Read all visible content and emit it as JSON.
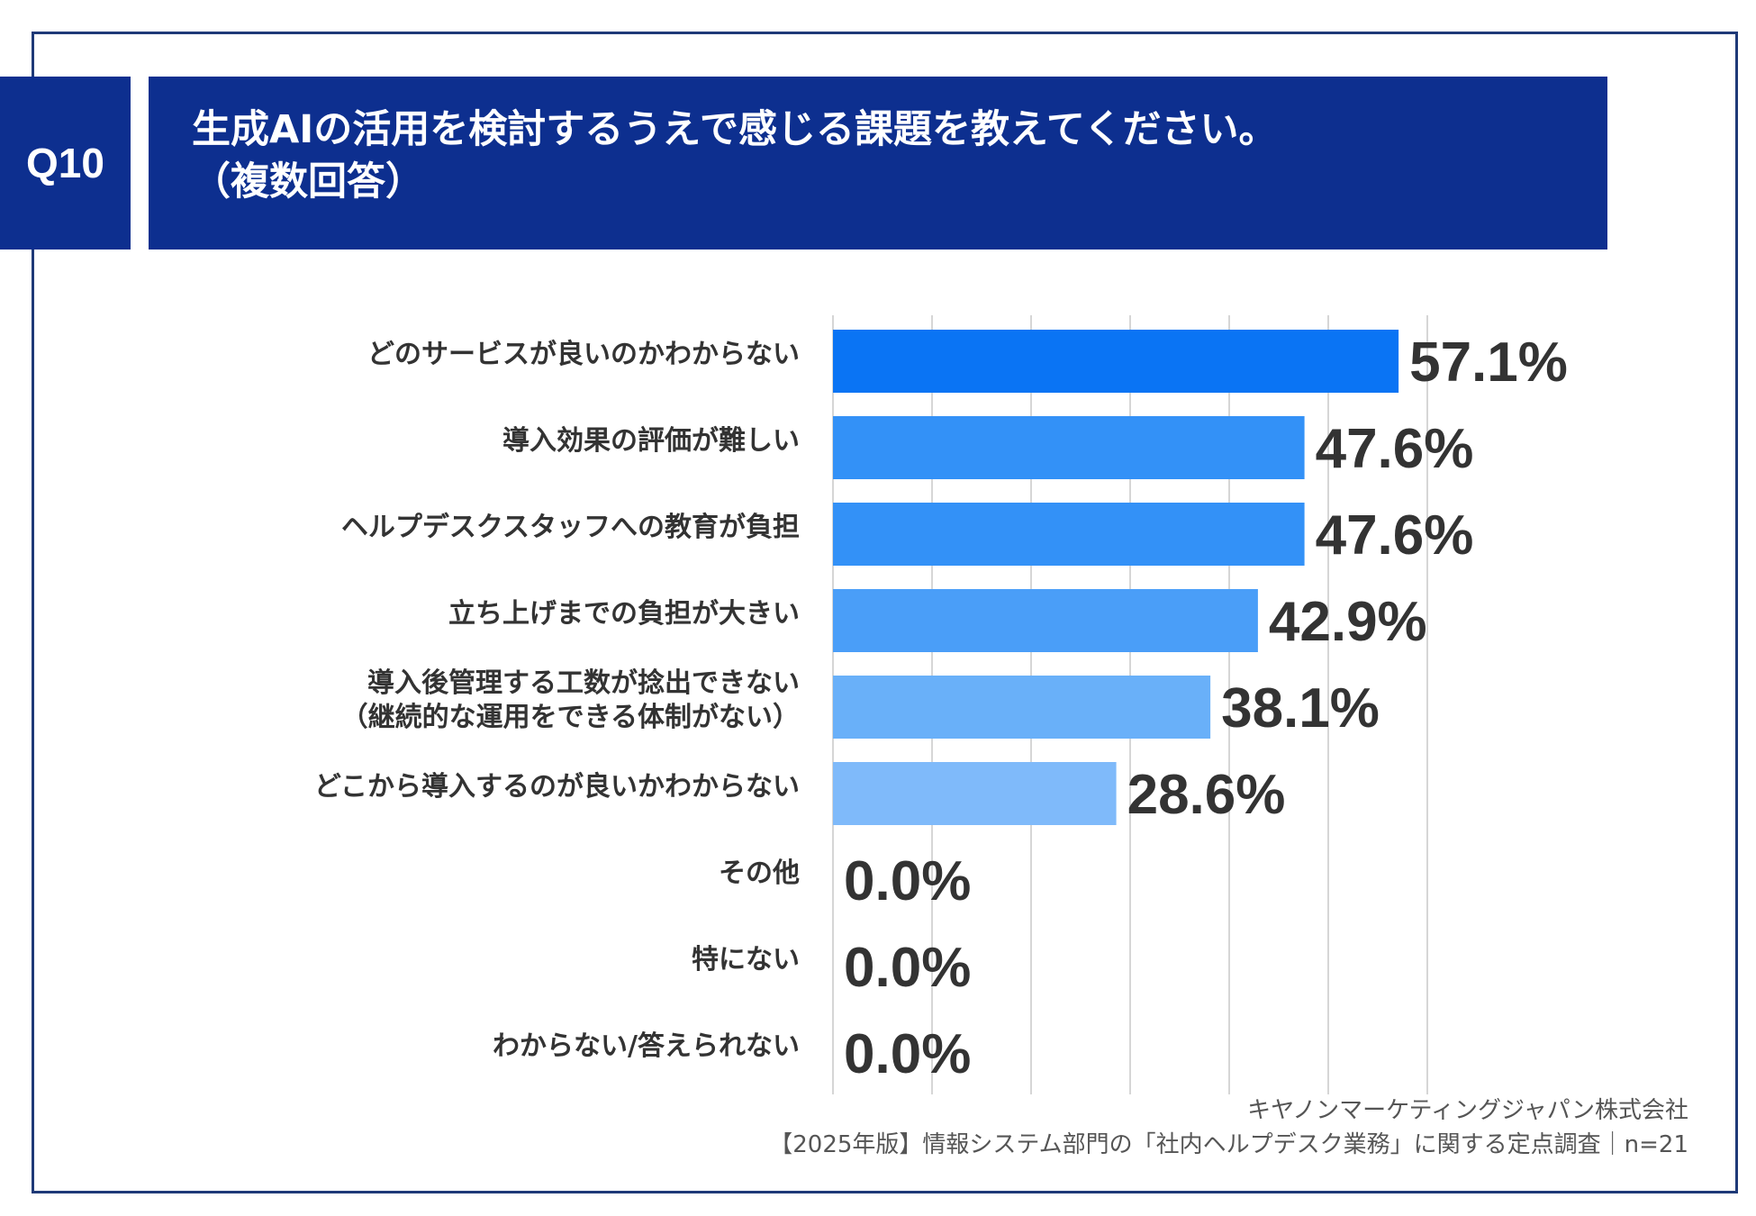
{
  "header": {
    "q_label": "Q10",
    "title_line1": "生成AIの活用を検討するうえで感じる課題を教えてください。",
    "title_line2": "（複数回答）"
  },
  "colors": {
    "header_bg": "#0d2f8f",
    "frame": "#1f3a78",
    "bar_palette": [
      "#0a74f4",
      "#3391f7",
      "#3391f7",
      "#4a9ef8",
      "#69b0f9",
      "#7fbafa",
      "#8cc2fa",
      "#8cc2fa",
      "#8cc2fa"
    ]
  },
  "chart_data": {
    "type": "bar",
    "orientation": "horizontal",
    "categories": [
      [
        "どのサービスが良いのかわからない"
      ],
      [
        "導入効果の評価が難しい"
      ],
      [
        "ヘルプデスクスタッフへの教育が負担"
      ],
      [
        "立ち上げまでの負担が大きい"
      ],
      [
        "導入後管理する工数が捻出できない",
        "（継続的な運用をできる体制がない）"
      ],
      [
        "どこから導入するのが良いかわからない"
      ],
      [
        "その他"
      ],
      [
        "特にない"
      ],
      [
        "わからない/答えられない"
      ]
    ],
    "values": [
      57.1,
      47.6,
      47.6,
      42.9,
      38.1,
      28.6,
      0.0,
      0.0,
      0.0
    ],
    "value_labels": [
      "57.1%",
      "47.6%",
      "47.6%",
      "42.9%",
      "38.1%",
      "28.6%",
      "0.0%",
      "0.0%",
      "0.0%"
    ],
    "xlim": [
      0,
      60
    ],
    "grid_step": 10,
    "grid": true
  },
  "footer": {
    "company": "キヤノンマーケティングジャパン株式会社",
    "source": "【2025年版】情報システム部門の「社内ヘルプデスク業務」に関する定点調査｜n=21"
  }
}
